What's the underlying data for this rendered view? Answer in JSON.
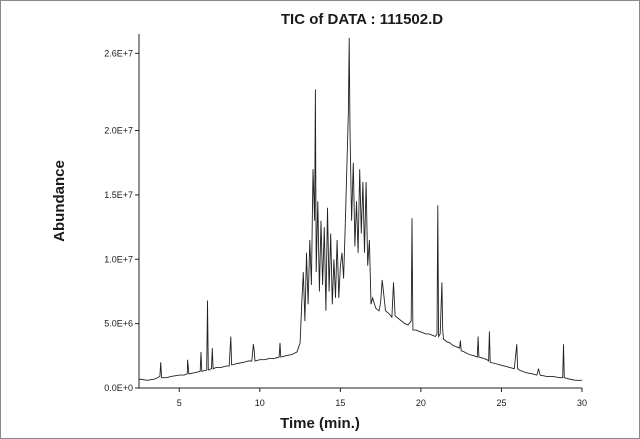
{
  "chart_data": {
    "type": "line",
    "title": "TIC of DATA : 111502.D",
    "xlabel": "Time (min.)",
    "ylabel": "Abundance",
    "xlim": [
      2.5,
      30
    ],
    "ylim": [
      0,
      27500000
    ],
    "grid": false,
    "legend": "none",
    "line_color": "#222222",
    "xticks": [
      {
        "value": 5,
        "label": "5"
      },
      {
        "value": 10,
        "label": "10"
      },
      {
        "value": 15,
        "label": "15"
      },
      {
        "value": 20,
        "label": "20"
      },
      {
        "value": 25,
        "label": "25"
      },
      {
        "value": 30,
        "label": "30"
      }
    ],
    "yticks": [
      {
        "value": 0,
        "label": "0.0E+0"
      },
      {
        "value": 5000000,
        "label": "5.0E+6"
      },
      {
        "value": 10000000,
        "label": "1.0E+7"
      },
      {
        "value": 15000000,
        "label": "1.5E+7"
      },
      {
        "value": 20000000,
        "label": "2.0E+7"
      },
      {
        "value": 26000000,
        "label": "2.6E+7"
      }
    ],
    "series": [
      {
        "x": [
          2.5,
          3.0,
          3.5,
          3.8,
          3.85,
          3.9,
          4.2,
          4.5,
          5.0,
          5.3,
          5.5,
          5.52,
          5.6,
          6.0,
          6.3,
          6.35,
          6.4,
          6.7,
          6.75,
          6.8,
          7.0,
          7.05,
          7.1,
          7.3,
          7.6,
          7.9,
          8.1,
          8.2,
          8.25,
          8.3,
          8.6,
          9.0,
          9.3,
          9.5,
          9.6,
          9.65,
          9.7,
          10.0,
          10.3,
          10.6,
          10.9,
          11.2,
          11.25,
          11.3,
          11.6,
          12.0,
          12.3,
          12.5,
          12.6,
          12.7,
          12.8,
          12.9,
          13.0,
          13.1,
          13.2,
          13.3,
          13.4,
          13.45,
          13.5,
          13.6,
          13.7,
          13.8,
          13.9,
          14.0,
          14.1,
          14.2,
          14.3,
          14.4,
          14.5,
          14.6,
          14.7,
          14.8,
          14.9,
          15.0,
          15.1,
          15.2,
          15.3,
          15.4,
          15.5,
          15.55,
          15.6,
          15.7,
          15.8,
          15.9,
          16.0,
          16.1,
          16.2,
          16.3,
          16.4,
          16.5,
          16.6,
          16.7,
          16.8,
          16.9,
          17.0,
          17.2,
          17.4,
          17.5,
          17.6,
          17.8,
          18.0,
          18.2,
          18.3,
          18.4,
          18.6,
          18.8,
          19.0,
          19.2,
          19.4,
          19.45,
          19.5,
          19.7,
          19.9,
          20.1,
          20.3,
          20.5,
          20.7,
          20.9,
          21.0,
          21.05,
          21.1,
          21.2,
          21.3,
          21.35,
          21.4,
          21.6,
          21.8,
          22.0,
          22.2,
          22.4,
          22.45,
          22.5,
          22.7,
          23.0,
          23.3,
          23.5,
          23.55,
          23.6,
          23.9,
          24.1,
          24.2,
          24.25,
          24.3,
          24.6,
          24.9,
          25.2,
          25.5,
          25.8,
          25.95,
          26.0,
          26.1,
          26.5,
          26.9,
          27.2,
          27.3,
          27.4,
          27.8,
          28.2,
          28.6,
          28.8,
          28.85,
          28.9,
          29.2,
          29.6,
          30.0
        ],
        "y": [
          700000,
          600000,
          700000,
          900000,
          2000000,
          800000,
          800000,
          900000,
          1000000,
          1000000,
          1100000,
          2200000,
          1100000,
          1200000,
          1300000,
          2800000,
          1300000,
          1400000,
          6800000,
          1400000,
          1500000,
          3100000,
          1500000,
          1600000,
          1600000,
          1700000,
          1700000,
          4000000,
          1800000,
          1800000,
          1900000,
          2000000,
          2100000,
          2100000,
          3400000,
          2900000,
          2100000,
          2200000,
          2200000,
          2300000,
          2300000,
          2400000,
          3500000,
          2400000,
          2500000,
          2600000,
          2800000,
          3500000,
          6500000,
          9000000,
          5200000,
          10500000,
          6500000,
          11500000,
          8000000,
          17000000,
          13000000,
          23200000,
          9000000,
          14500000,
          7500000,
          13000000,
          8000000,
          12500000,
          6000000,
          14000000,
          7500000,
          12000000,
          6500000,
          10000000,
          7000000,
          11500000,
          7000000,
          9500000,
          10500000,
          8500000,
          12500000,
          17000000,
          21500000,
          27200000,
          20000000,
          13000000,
          17500000,
          11000000,
          14500000,
          10500000,
          17000000,
          12000000,
          16000000,
          10500000,
          16000000,
          9500000,
          11500000,
          6500000,
          7000000,
          6200000,
          6000000,
          6600000,
          8400000,
          6000000,
          5800000,
          5500000,
          8200000,
          5600000,
          5400000,
          5200000,
          5000000,
          4900000,
          5200000,
          13200000,
          4500000,
          4500000,
          4400000,
          4300000,
          4200000,
          4200000,
          4100000,
          4000000,
          4200000,
          14200000,
          4000000,
          4200000,
          8200000,
          4500000,
          3800000,
          3600000,
          3500000,
          3300000,
          3200000,
          3100000,
          3700000,
          2900000,
          2800000,
          2600000,
          2500000,
          2400000,
          4000000,
          2400000,
          2300000,
          2200000,
          2100000,
          4400000,
          2000000,
          1900000,
          1800000,
          1700000,
          1600000,
          1500000,
          3400000,
          1500000,
          1400000,
          1200000,
          1100000,
          1000000,
          1500000,
          1000000,
          900000,
          900000,
          800000,
          800000,
          3400000,
          800000,
          700000,
          600000,
          600000
        ]
      }
    ]
  }
}
